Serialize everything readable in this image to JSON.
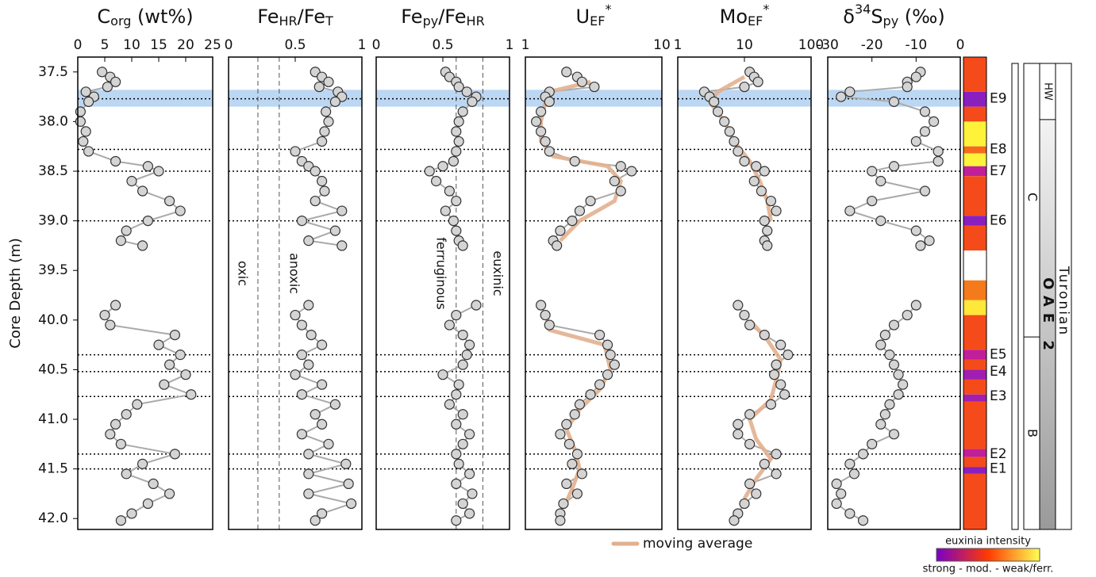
{
  "figure": {
    "y_label": "Core Depth (m)",
    "ylim": [
      37.35,
      42.11
    ],
    "yticks": [
      37.5,
      {
        "value": 38,
        "label": "38.0"
      },
      38.5,
      {
        "value": 39,
        "label": "39.0"
      },
      39.5,
      {
        "value": 40,
        "label": "40.0"
      },
      40.5,
      {
        "value": 41,
        "label": "41.0"
      },
      41.5,
      {
        "value": 42,
        "label": "42.0"
      }
    ],
    "highlight": [
      37.68,
      37.85
    ],
    "events": [
      {
        "label": "E9",
        "depth": 37.77
      },
      {
        "label": "E8",
        "depth": 38.28
      },
      {
        "label": "E7",
        "depth": 38.5
      },
      {
        "label": "E6",
        "depth": 39.0
      },
      {
        "label": "E5",
        "depth": 40.35
      },
      {
        "label": "E4",
        "depth": 40.52
      },
      {
        "label": "E3",
        "depth": 40.77
      },
      {
        "label": "E2",
        "depth": 41.35
      },
      {
        "label": "E1",
        "depth": 41.5
      }
    ],
    "legend": {
      "label": "moving average",
      "color": "#e2b08f"
    },
    "euxinia": {
      "title": "euxinia intensity",
      "scale_label": "strong - mod. - weak/ferr.",
      "bands": [
        {
          "top": 37.35,
          "bottom": 37.7,
          "color": "#f54b1b"
        },
        {
          "top": 37.7,
          "bottom": 37.85,
          "color": "#8a1fc0"
        },
        {
          "top": 37.85,
          "bottom": 38.0,
          "color": "#f54b1b"
        },
        {
          "top": 38.0,
          "bottom": 38.25,
          "color": "#fff23a"
        },
        {
          "top": 38.25,
          "bottom": 38.32,
          "color": "#f56a1b"
        },
        {
          "top": 38.32,
          "bottom": 38.45,
          "color": "#fff23a"
        },
        {
          "top": 38.45,
          "bottom": 38.55,
          "color": "#c01f9a"
        },
        {
          "top": 38.55,
          "bottom": 38.95,
          "color": "#f54b1b"
        },
        {
          "top": 38.95,
          "bottom": 39.05,
          "color": "#8a1fc0"
        },
        {
          "top": 39.05,
          "bottom": 39.3,
          "color": "#f54b1b"
        },
        {
          "top": 39.3,
          "bottom": 39.6,
          "color": "#ffffff"
        },
        {
          "top": 39.6,
          "bottom": 39.8,
          "color": "#f57a1b"
        },
        {
          "top": 39.8,
          "bottom": 39.95,
          "color": "#ffe83a"
        },
        {
          "top": 39.95,
          "bottom": 40.3,
          "color": "#f54b1b"
        },
        {
          "top": 40.3,
          "bottom": 40.4,
          "color": "#c01f9a"
        },
        {
          "top": 40.4,
          "bottom": 40.5,
          "color": "#f54b1b"
        },
        {
          "top": 40.5,
          "bottom": 40.6,
          "color": "#a01fb0"
        },
        {
          "top": 40.6,
          "bottom": 40.75,
          "color": "#f54b1b"
        },
        {
          "top": 40.75,
          "bottom": 40.82,
          "color": "#a01fb0"
        },
        {
          "top": 40.82,
          "bottom": 41.3,
          "color": "#f54b1b"
        },
        {
          "top": 41.3,
          "bottom": 41.38,
          "color": "#c01f9a"
        },
        {
          "top": 41.38,
          "bottom": 41.48,
          "color": "#f54b1b"
        },
        {
          "top": 41.48,
          "bottom": 41.55,
          "color": "#8a1fc0"
        },
        {
          "top": 41.55,
          "bottom": 42.11,
          "color": "#f54b1b"
        }
      ]
    },
    "units": {
      "labels": [
        "C",
        "B"
      ],
      "boundary": 40.17
    },
    "stages": {
      "hw": "HW",
      "hw_bottom": 37.98,
      "oae": "OAE 2",
      "stage": "Turonian"
    }
  },
  "chart_data": [
    {
      "type": "scatter",
      "title": [
        {
          "text": "C"
        },
        {
          "text": "org",
          "style": "sub"
        },
        {
          "text": " (wt%)"
        }
      ],
      "xlim": [
        0,
        25
      ],
      "xticks": [
        0,
        5,
        10,
        15,
        20,
        25
      ],
      "log": false,
      "y": [
        37.5,
        37.55,
        37.6,
        37.65,
        37.7,
        37.75,
        37.8,
        37.9,
        38.0,
        38.1,
        38.2,
        38.3,
        38.4,
        38.45,
        38.5,
        38.6,
        38.7,
        38.8,
        38.9,
        39.0,
        39.1,
        39.2,
        39.25,
        null,
        39.85,
        39.95,
        40.05,
        40.15,
        40.25,
        40.35,
        40.45,
        40.55,
        40.65,
        40.75,
        40.85,
        40.95,
        41.05,
        41.15,
        41.25,
        41.35,
        41.45,
        41.55,
        41.65,
        41.75,
        41.85,
        41.95,
        42.02
      ],
      "x": [
        4.5,
        6,
        7,
        5.5,
        1.5,
        3,
        2,
        0.5,
        0.5,
        1.5,
        1,
        2,
        7,
        13,
        15,
        10,
        12,
        17,
        19,
        13,
        9,
        8,
        12,
        null,
        7,
        5,
        6,
        18,
        15,
        19,
        17,
        20,
        16,
        21,
        11,
        9,
        7,
        6,
        8,
        18,
        12,
        9,
        14,
        17,
        13,
        10,
        8
      ]
    },
    {
      "type": "scatter",
      "title": [
        {
          "text": "Fe"
        },
        {
          "text": "HR",
          "style": "sub"
        },
        {
          "text": "/Fe"
        },
        {
          "text": "T",
          "style": "sub"
        }
      ],
      "xlim": [
        0,
        1
      ],
      "xticks": [
        0,
        0.5,
        1
      ],
      "log": false,
      "thresholds": [
        0.22,
        0.38
      ],
      "zone_labels": [
        "oxic",
        "anoxic"
      ],
      "y": [
        37.5,
        37.55,
        37.6,
        37.65,
        37.7,
        37.75,
        37.8,
        37.9,
        38.0,
        38.1,
        38.2,
        38.3,
        38.4,
        38.45,
        38.5,
        38.6,
        38.7,
        38.8,
        38.9,
        39.0,
        39.1,
        39.2,
        39.25,
        null,
        39.85,
        39.95,
        40.05,
        40.15,
        40.25,
        40.35,
        40.45,
        40.55,
        40.65,
        40.75,
        40.85,
        40.95,
        41.05,
        41.15,
        41.25,
        41.35,
        41.45,
        41.55,
        41.65,
        41.75,
        41.85,
        41.95,
        42.02
      ],
      "x": [
        0.65,
        0.7,
        0.75,
        0.68,
        0.82,
        0.85,
        0.8,
        0.73,
        0.75,
        0.72,
        0.7,
        0.5,
        0.55,
        0.6,
        0.65,
        0.7,
        0.72,
        0.65,
        0.85,
        0.55,
        0.8,
        0.6,
        0.85,
        null,
        0.6,
        0.5,
        0.55,
        0.62,
        0.7,
        0.55,
        0.6,
        0.5,
        0.7,
        0.55,
        0.8,
        0.65,
        0.7,
        0.55,
        0.75,
        0.6,
        0.88,
        0.6,
        0.9,
        0.6,
        0.92,
        0.7,
        0.65
      ]
    },
    {
      "type": "scatter",
      "title": [
        {
          "text": "Fe"
        },
        {
          "text": "py",
          "style": "sub"
        },
        {
          "text": "/Fe"
        },
        {
          "text": "HR",
          "style": "sub"
        }
      ],
      "xlim": [
        0,
        1
      ],
      "xticks": [
        0,
        0.5,
        1
      ],
      "log": false,
      "thresholds": [
        0.6,
        0.8
      ],
      "zone_labels": [
        "ferruginous",
        "euxinic"
      ],
      "y": [
        37.5,
        37.55,
        37.6,
        37.65,
        37.7,
        37.75,
        37.8,
        37.9,
        38.0,
        38.1,
        38.2,
        38.3,
        38.4,
        38.45,
        38.5,
        38.6,
        38.7,
        38.8,
        38.9,
        39.0,
        39.1,
        39.2,
        39.25,
        null,
        39.85,
        39.95,
        40.05,
        40.15,
        40.25,
        40.35,
        40.45,
        40.55,
        40.65,
        40.75,
        40.85,
        40.95,
        41.05,
        41.15,
        41.25,
        41.35,
        41.45,
        41.55,
        41.65,
        41.75,
        41.85,
        41.95,
        42.02
      ],
      "x": [
        0.52,
        0.55,
        0.6,
        0.62,
        0.68,
        0.75,
        0.72,
        0.65,
        0.62,
        0.6,
        0.62,
        0.6,
        0.58,
        0.5,
        0.4,
        0.45,
        0.55,
        0.6,
        0.52,
        0.58,
        0.6,
        0.62,
        0.65,
        null,
        0.75,
        0.6,
        0.55,
        0.65,
        0.7,
        0.68,
        0.65,
        0.5,
        0.62,
        0.6,
        0.55,
        0.65,
        0.6,
        0.7,
        0.65,
        0.6,
        0.62,
        0.7,
        0.6,
        0.72,
        0.65,
        0.7,
        0.6
      ]
    },
    {
      "type": "scatter",
      "title": [
        {
          "text": "U"
        },
        {
          "text": "EF",
          "style": "sub"
        },
        {
          "text": "*",
          "style": "sup"
        }
      ],
      "xlim": [
        1,
        10
      ],
      "xticks": [
        1,
        10
      ],
      "log": true,
      "y": [
        37.5,
        37.55,
        37.6,
        37.65,
        37.7,
        37.75,
        37.8,
        37.9,
        38.0,
        38.1,
        38.2,
        38.3,
        38.4,
        38.45,
        38.5,
        38.6,
        38.7,
        38.8,
        38.9,
        39.0,
        39.1,
        39.2,
        39.25,
        null,
        39.85,
        39.95,
        40.05,
        40.15,
        40.25,
        40.35,
        40.45,
        40.55,
        40.65,
        40.75,
        40.85,
        40.95,
        41.05,
        41.15,
        41.25,
        41.35,
        41.45,
        41.55,
        41.65,
        41.75,
        41.85,
        41.95,
        42.02
      ],
      "x": [
        2.0,
        2.4,
        2.6,
        3.2,
        1.5,
        1.4,
        1.5,
        1.3,
        1.2,
        1.3,
        1.4,
        1.5,
        2.3,
        5,
        6,
        4.5,
        5,
        3,
        2.5,
        2.2,
        1.8,
        1.6,
        1.7,
        null,
        1.3,
        1.4,
        1.5,
        3.5,
        4,
        4.2,
        4.5,
        4,
        3.5,
        3,
        2.5,
        2.3,
        2,
        1.8,
        2.1,
        2.4,
        2.2,
        2.6,
        2,
        2.4,
        1.9,
        1.8,
        1.8
      ],
      "moving_average": {
        "y": [
          37.6,
          37.7,
          37.8,
          38.0,
          38.2,
          38.35,
          38.45,
          38.6,
          38.8,
          39.0,
          39.2,
          null,
          39.9,
          40.1,
          40.25,
          40.5,
          40.7,
          40.9,
          41.1,
          41.3,
          41.5,
          41.7,
          41.9
        ],
        "x": [
          3,
          1.5,
          1.4,
          1.3,
          1.3,
          1.6,
          4,
          5,
          4.5,
          2.5,
          1.8,
          null,
          1.4,
          1.5,
          3.8,
          4.2,
          3.5,
          2.5,
          2,
          2.3,
          2.5,
          2.2,
          1.9
        ]
      }
    },
    {
      "type": "scatter",
      "title": [
        {
          "text": "Mo"
        },
        {
          "text": "EF",
          "style": "sub"
        },
        {
          "text": "*",
          "style": "sup"
        }
      ],
      "xlim": [
        1,
        100
      ],
      "xticks": [
        1,
        10,
        100
      ],
      "log": true,
      "y": [
        37.5,
        37.55,
        37.6,
        37.65,
        37.7,
        37.75,
        37.8,
        37.9,
        38.0,
        38.1,
        38.2,
        38.3,
        38.4,
        38.45,
        38.5,
        38.6,
        38.7,
        38.8,
        38.9,
        39.0,
        39.1,
        39.2,
        39.25,
        null,
        39.85,
        39.95,
        40.05,
        40.15,
        40.25,
        40.35,
        40.45,
        40.55,
        40.65,
        40.75,
        40.85,
        40.95,
        41.05,
        41.15,
        41.25,
        41.35,
        41.45,
        41.55,
        41.65,
        41.75,
        41.85,
        41.95,
        42.02
      ],
      "x": [
        12,
        14,
        16,
        10,
        2.5,
        3,
        3.5,
        4,
        5,
        6,
        7,
        8,
        10,
        15,
        20,
        14,
        18,
        25,
        30,
        20,
        22,
        20,
        22,
        null,
        8,
        10,
        12,
        20,
        35,
        45,
        30,
        28,
        35,
        40,
        25,
        12,
        8,
        8,
        12,
        30,
        20,
        30,
        12,
        15,
        10,
        8,
        7
      ],
      "moving_average": {
        "y": [
          37.55,
          37.7,
          37.8,
          38.0,
          38.2,
          38.4,
          38.6,
          38.8,
          39.0,
          null,
          40.0,
          40.2,
          40.4,
          40.6,
          40.8,
          41.0,
          41.2,
          41.4,
          41.6,
          41.8
        ],
        "x": [
          10,
          4,
          3,
          5,
          7,
          12,
          17,
          22,
          25,
          null,
          12,
          22,
          35,
          30,
          25,
          12,
          15,
          25,
          15,
          10
        ]
      }
    },
    {
      "type": "scatter",
      "title": [
        {
          "text": "δ"
        },
        {
          "text": "34",
          "style": "sup"
        },
        {
          "text": "S"
        },
        {
          "text": "py",
          "style": "sub"
        },
        {
          "text": " (‰)"
        }
      ],
      "xlim": [
        -30,
        0
      ],
      "xticks": [
        -30,
        -20,
        -10,
        0
      ],
      "log": false,
      "y": [
        37.5,
        37.55,
        37.6,
        37.65,
        37.7,
        37.75,
        37.8,
        37.9,
        38.0,
        38.1,
        38.2,
        38.3,
        38.4,
        38.45,
        38.5,
        38.6,
        38.7,
        38.8,
        38.9,
        39.0,
        39.1,
        39.2,
        39.25,
        null,
        39.85,
        39.95,
        40.05,
        40.15,
        40.25,
        40.35,
        40.45,
        40.55,
        40.65,
        40.75,
        40.85,
        40.95,
        41.05,
        41.15,
        41.25,
        41.35,
        41.45,
        41.55,
        41.65,
        41.75,
        41.85,
        41.95,
        42.02
      ],
      "x": [
        -9,
        -10,
        -12,
        -12,
        -25,
        -27,
        -15,
        -8,
        -6,
        -8,
        -10,
        -5,
        -5,
        -15,
        -20,
        -18,
        -8,
        -20,
        -25,
        -18,
        -10,
        -7,
        -9,
        null,
        -10,
        -12,
        -15,
        -17,
        -18,
        -16,
        -15,
        -14,
        -13,
        -14,
        -16,
        -17,
        -18,
        -15,
        -20,
        -22,
        -25,
        -24,
        -28,
        -27,
        -28,
        -25,
        -22
      ]
    }
  ]
}
